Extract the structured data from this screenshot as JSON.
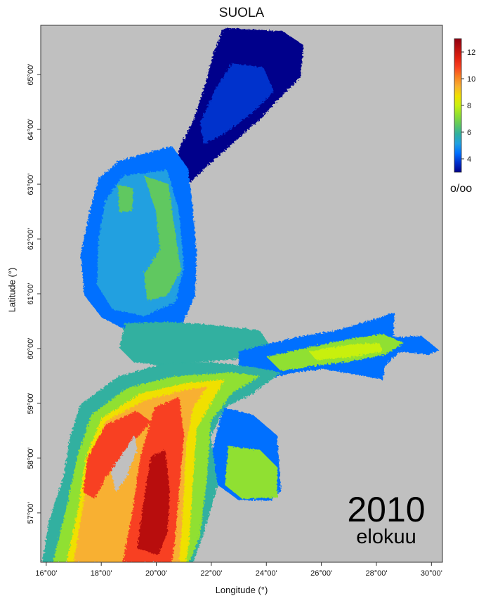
{
  "title": "SUOLA",
  "year": "2010",
  "month": "elokuu",
  "unit": "o/oo",
  "colors": {
    "land": "#c0c0c0",
    "scale": [
      "#00008b",
      "#0030cc",
      "#0070ff",
      "#20a0e0",
      "#30b0a0",
      "#60c860",
      "#90e030",
      "#c8f010",
      "#f0e000",
      "#f8b030",
      "#f88020",
      "#f84020",
      "#e02010",
      "#b81010",
      "#900010"
    ]
  },
  "legend": {
    "min": 3,
    "max": 13,
    "ticks": [
      "4",
      "6",
      "8",
      "10",
      "12"
    ]
  },
  "axes": {
    "xlabel": "Longitude (°)",
    "ylabel": "Latitude (°)",
    "x_ticks": [
      "16°00'",
      "18°00'",
      "20°00'",
      "22°00'",
      "24°00'",
      "26°00'",
      "28°00'",
      "30°00'"
    ],
    "y_ticks": [
      "57°00'",
      "58°00'",
      "59°00'",
      "60°00'",
      "61°00'",
      "62°00'",
      "63°00'",
      "64°00'",
      "65°00'"
    ],
    "lon_range": [
      15.8,
      30.4
    ],
    "lat_range": [
      56.1,
      65.9
    ]
  }
}
